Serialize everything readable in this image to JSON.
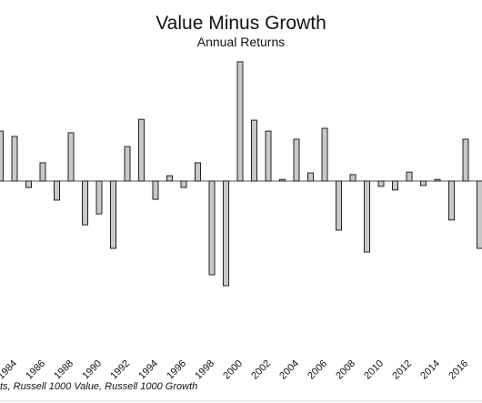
{
  "chart_data": {
    "type": "bar",
    "title": "Value Minus Growth",
    "subtitle": "Annual Returns",
    "source": "ts, Russell 1000 Value, Russell 1000 Growth",
    "categories": [
      null,
      "1984",
      null,
      "1986",
      null,
      "1988",
      null,
      "1990",
      null,
      "1992",
      null,
      "1994",
      null,
      "1996",
      null,
      "1998",
      null,
      "2000",
      null,
      "2002",
      null,
      "2004",
      null,
      "2006",
      null,
      "2008",
      null,
      "2010",
      null,
      "2012",
      null,
      "2014",
      null,
      "2016",
      null
    ],
    "values": [
      12.3,
      11,
      -1.6,
      4.5,
      -4.7,
      11.9,
      -10.8,
      -8.1,
      -16.6,
      8.5,
      15.2,
      -4.5,
      1.3,
      -1.6,
      4.5,
      -23.1,
      -25.8,
      29.4,
      15,
      12.3,
      0.4,
      10.3,
      2,
      13,
      -12.1,
      1.6,
      -17.5,
      -1.3,
      -2.2,
      2.2,
      -1.1,
      0.4,
      -9.6,
      10.3,
      -16.6
    ],
    "color": "#c8c8c8"
  }
}
